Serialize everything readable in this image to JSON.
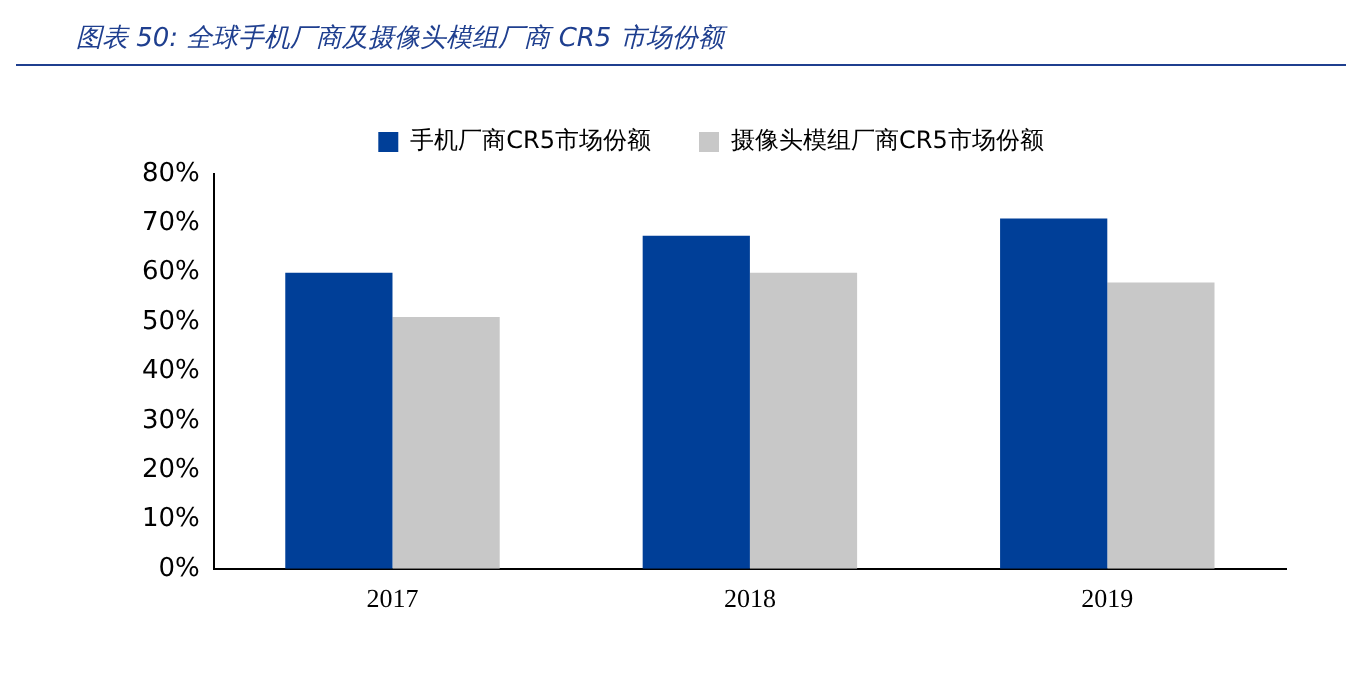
{
  "chart_data": {
    "type": "bar",
    "title": "图表 50:  全球手机厂商及摄像头模组厂商 CR5 市场份额",
    "categories": [
      "2017",
      "2018",
      "2019"
    ],
    "series": [
      {
        "name": "手机厂商CR5市场份额",
        "color": "#003f98",
        "values": [
          60,
          67.5,
          71
        ]
      },
      {
        "name": "摄像头模组厂商CR5市场份额",
        "color": "#c8c8c8",
        "values": [
          51,
          60,
          58
        ]
      }
    ],
    "ylim": [
      0,
      80
    ],
    "yticks": [
      {
        "value": 0,
        "label": "0%"
      },
      {
        "value": 10,
        "label": "10%"
      },
      {
        "value": 20,
        "label": "20%"
      },
      {
        "value": 30,
        "label": "30%"
      },
      {
        "value": 40,
        "label": "40%"
      },
      {
        "value": 50,
        "label": "50%"
      },
      {
        "value": 60,
        "label": "60%"
      },
      {
        "value": 70,
        "label": "70%"
      },
      {
        "value": 80,
        "label": "80%"
      }
    ],
    "grid": false,
    "legend": "top"
  }
}
